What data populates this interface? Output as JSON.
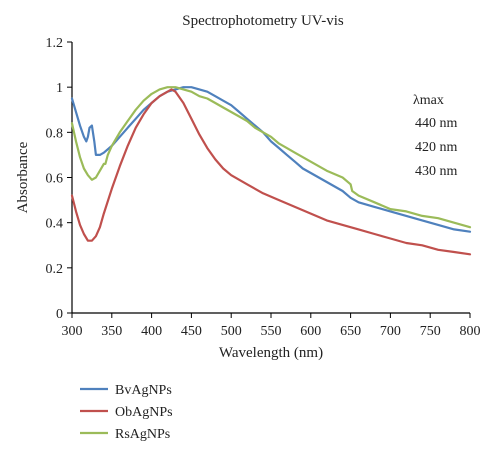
{
  "chart_data": {
    "type": "line",
    "title": "Spectrophotometry UV-vis",
    "xlabel": "Wavelength (nm)",
    "ylabel": "Absorbance",
    "xlim": [
      300,
      800
    ],
    "ylim": [
      0,
      1.2
    ],
    "xticks": [
      300,
      350,
      400,
      450,
      500,
      550,
      600,
      650,
      700,
      750,
      800
    ],
    "yticks": [
      0,
      0.2,
      0.4,
      0.6,
      0.8,
      1,
      1.2
    ],
    "xtick_labels": [
      "300",
      "350",
      "400",
      "450",
      "500",
      "550",
      "600",
      "650",
      "700",
      "750",
      "800"
    ],
    "ytick_labels": [
      "0",
      "0.2",
      "0.4",
      "0.6",
      "0.8",
      "1",
      "1.2"
    ],
    "grid": false,
    "legend_position": "below",
    "annotation": {
      "header": "λmax",
      "lines": [
        "440 nm",
        "420 nm",
        "430 nm"
      ]
    },
    "series": [
      {
        "name": "BvAgNPs",
        "color": "#4f81bd",
        "x": [
          300,
          305,
          310,
          315,
          318,
          320,
          322,
          325,
          328,
          330,
          335,
          340,
          350,
          360,
          370,
          380,
          390,
          400,
          410,
          420,
          430,
          440,
          450,
          460,
          470,
          480,
          490,
          500,
          510,
          520,
          530,
          540,
          550,
          560,
          570,
          580,
          590,
          600,
          620,
          640,
          650,
          660,
          680,
          700,
          720,
          740,
          760,
          780,
          800
        ],
        "y": [
          0.95,
          0.89,
          0.83,
          0.78,
          0.76,
          0.78,
          0.82,
          0.83,
          0.76,
          0.7,
          0.7,
          0.71,
          0.74,
          0.78,
          0.82,
          0.86,
          0.9,
          0.93,
          0.96,
          0.98,
          0.99,
          1.0,
          1.0,
          0.99,
          0.98,
          0.96,
          0.94,
          0.92,
          0.89,
          0.86,
          0.83,
          0.8,
          0.76,
          0.73,
          0.7,
          0.67,
          0.64,
          0.62,
          0.58,
          0.54,
          0.51,
          0.49,
          0.47,
          0.45,
          0.43,
          0.41,
          0.39,
          0.37,
          0.36
        ]
      },
      {
        "name": "ObAgNPs",
        "color": "#c0504d",
        "x": [
          300,
          305,
          310,
          315,
          320,
          325,
          330,
          335,
          340,
          350,
          360,
          370,
          380,
          390,
          400,
          410,
          420,
          425,
          430,
          440,
          450,
          460,
          470,
          480,
          490,
          500,
          520,
          540,
          560,
          580,
          600,
          620,
          640,
          660,
          680,
          700,
          720,
          740,
          760,
          780,
          800
        ],
        "y": [
          0.52,
          0.45,
          0.39,
          0.35,
          0.32,
          0.32,
          0.34,
          0.38,
          0.44,
          0.55,
          0.65,
          0.74,
          0.82,
          0.88,
          0.93,
          0.96,
          0.98,
          0.99,
          0.98,
          0.93,
          0.86,
          0.79,
          0.73,
          0.68,
          0.64,
          0.61,
          0.57,
          0.53,
          0.5,
          0.47,
          0.44,
          0.41,
          0.39,
          0.37,
          0.35,
          0.33,
          0.31,
          0.3,
          0.28,
          0.27,
          0.26
        ]
      },
      {
        "name": "RsAgNPs",
        "color": "#9bbb59",
        "x": [
          300,
          305,
          310,
          315,
          320,
          325,
          330,
          335,
          340,
          342,
          345,
          350,
          360,
          370,
          380,
          390,
          400,
          410,
          420,
          430,
          440,
          450,
          460,
          470,
          480,
          490,
          500,
          510,
          520,
          530,
          540,
          550,
          560,
          570,
          580,
          600,
          620,
          640,
          650,
          652,
          660,
          680,
          700,
          720,
          740,
          760,
          780,
          800
        ],
        "y": [
          0.84,
          0.76,
          0.69,
          0.64,
          0.61,
          0.59,
          0.6,
          0.63,
          0.66,
          0.66,
          0.7,
          0.74,
          0.8,
          0.85,
          0.9,
          0.94,
          0.97,
          0.99,
          1.0,
          1.0,
          0.99,
          0.98,
          0.96,
          0.95,
          0.93,
          0.91,
          0.89,
          0.87,
          0.85,
          0.82,
          0.8,
          0.78,
          0.75,
          0.73,
          0.71,
          0.67,
          0.63,
          0.6,
          0.57,
          0.54,
          0.52,
          0.49,
          0.46,
          0.45,
          0.43,
          0.42,
          0.4,
          0.38
        ]
      }
    ]
  }
}
